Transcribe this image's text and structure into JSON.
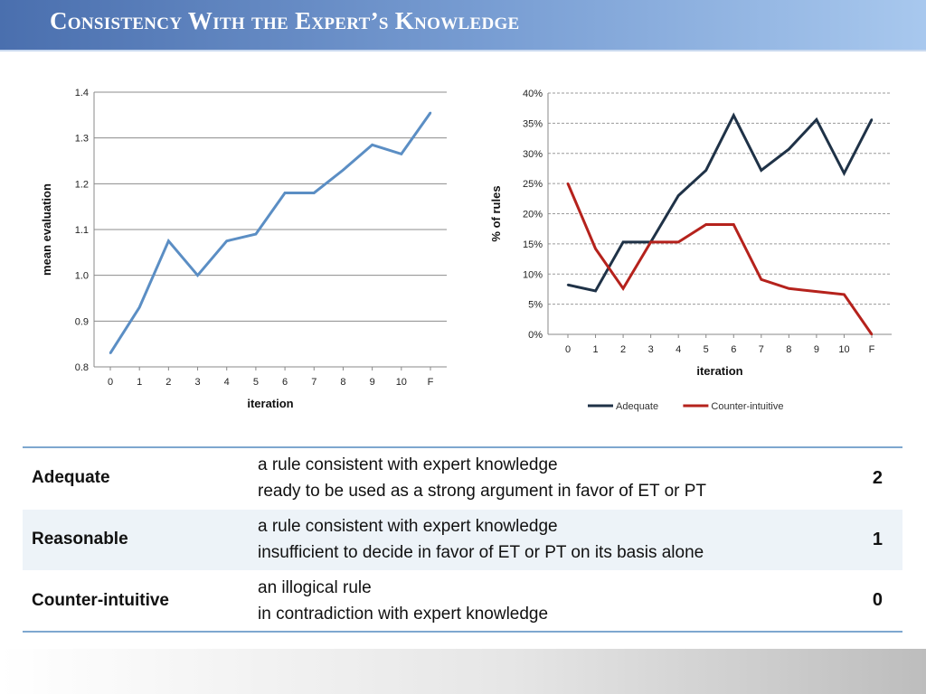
{
  "slide": {
    "title": "Consistency With the Expert’s Knowledge"
  },
  "chart_data": [
    {
      "type": "line",
      "ylabel": "mean evaluation",
      "xlabel": "iteration",
      "x": [
        "0",
        "1",
        "2",
        "3",
        "4",
        "5",
        "6",
        "7",
        "8",
        "9",
        "10",
        "F"
      ],
      "ylim": [
        0.8,
        1.4
      ],
      "yticks": [
        "0.8",
        "0.9",
        "1.0",
        "1.1",
        "1.2",
        "1.3",
        "1.4"
      ],
      "grid": true,
      "series": [
        {
          "color": "#5b8ec4",
          "values": [
            0.83,
            0.93,
            1.075,
            1.0,
            1.075,
            1.09,
            1.18,
            1.18,
            1.23,
            1.285,
            1.265,
            1.355
          ]
        }
      ]
    },
    {
      "type": "line",
      "ylabel": "% of rules",
      "xlabel": "iteration",
      "x": [
        "0",
        "1",
        "2",
        "3",
        "4",
        "5",
        "6",
        "7",
        "8",
        "9",
        "10",
        "F"
      ],
      "ylim": [
        0,
        40
      ],
      "yticks": [
        "0%",
        "5%",
        "10%",
        "15%",
        "20%",
        "25%",
        "30%",
        "35%",
        "40%"
      ],
      "grid": true,
      "legend_position": "bottom",
      "series": [
        {
          "name": "Adequate",
          "color": "#1f3247",
          "values": [
            8.2,
            7.2,
            15.3,
            15.3,
            23,
            27.2,
            36.3,
            27.2,
            30.7,
            35.6,
            26.7,
            35.6
          ]
        },
        {
          "name": "Counter-intuitive",
          "color": "#b5221c",
          "values": [
            25,
            14.2,
            7.6,
            15.3,
            15.3,
            18.2,
            18.2,
            9.1,
            7.6,
            7.1,
            6.6,
            0
          ]
        }
      ]
    }
  ],
  "scale_table": {
    "rows": [
      {
        "name": "Adequate",
        "lines": [
          "a rule consistent with expert knowledge",
          "ready to be used as a strong argument in favor of ET or PT"
        ],
        "score": "2"
      },
      {
        "name": "Reasonable",
        "lines": [
          "a rule consistent with expert knowledge",
          "insufficient to decide in favor of ET or PT on its basis alone"
        ],
        "score": "1"
      },
      {
        "name": "Counter-intuitive",
        "lines": [
          "an illogical rule",
          "in contradiction with expert knowledge"
        ],
        "score": "0"
      }
    ]
  }
}
